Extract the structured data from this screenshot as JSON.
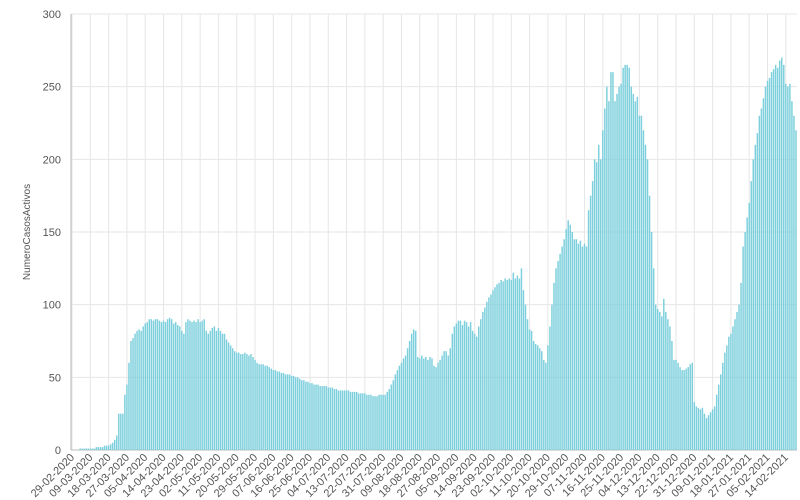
{
  "chart_data": {
    "type": "bar",
    "y_label": "NumeroCasosActivos",
    "color": "#7ccfdc",
    "grid": true,
    "ylim": [
      0,
      300
    ],
    "yticks": [
      0,
      50,
      100,
      150,
      200,
      250,
      300
    ],
    "categories": [
      "29-02-2020",
      null,
      null,
      null,
      null,
      null,
      null,
      null,
      null,
      "09-03-2020",
      null,
      null,
      null,
      null,
      null,
      null,
      null,
      null,
      "18-03-2020",
      null,
      null,
      null,
      null,
      null,
      null,
      null,
      null,
      "27-03-2020",
      null,
      null,
      null,
      null,
      null,
      null,
      null,
      null,
      "05-04-2020",
      null,
      null,
      null,
      null,
      null,
      null,
      null,
      null,
      "14-04-2020",
      null,
      null,
      null,
      null,
      null,
      null,
      null,
      null,
      "23-04-2020",
      null,
      null,
      null,
      null,
      null,
      null,
      null,
      null,
      "02-05-2020",
      null,
      null,
      null,
      null,
      null,
      null,
      null,
      null,
      "11-05-2020",
      null,
      null,
      null,
      null,
      null,
      null,
      null,
      null,
      "20-05-2020",
      null,
      null,
      null,
      null,
      null,
      null,
      null,
      null,
      "29-05-2020",
      null,
      null,
      null,
      null,
      null,
      null,
      null,
      null,
      "07-06-2020",
      null,
      null,
      null,
      null,
      null,
      null,
      null,
      null,
      "16-06-2020",
      null,
      null,
      null,
      null,
      null,
      null,
      null,
      null,
      "25-06-2020",
      null,
      null,
      null,
      null,
      null,
      null,
      null,
      null,
      "04-07-2020",
      null,
      null,
      null,
      null,
      null,
      null,
      null,
      null,
      "13-07-2020",
      null,
      null,
      null,
      null,
      null,
      null,
      null,
      null,
      "22-07-2020",
      null,
      null,
      null,
      null,
      null,
      null,
      null,
      null,
      "31-07-2020",
      null,
      null,
      null,
      null,
      null,
      null,
      null,
      null,
      "09-08-2020",
      null,
      null,
      null,
      null,
      null,
      null,
      null,
      null,
      "18-08-2020",
      null,
      null,
      null,
      null,
      null,
      null,
      null,
      null,
      "27-08-2020",
      null,
      null,
      null,
      null,
      null,
      null,
      null,
      null,
      "05-09-2020",
      null,
      null,
      null,
      null,
      null,
      null,
      null,
      null,
      "14-09-2020",
      null,
      null,
      null,
      null,
      null,
      null,
      null,
      null,
      "23-09-2020",
      null,
      null,
      null,
      null,
      null,
      null,
      null,
      null,
      "02-10-2020",
      null,
      null,
      null,
      null,
      null,
      null,
      null,
      null,
      "11-10-2020",
      null,
      null,
      null,
      null,
      null,
      null,
      null,
      null,
      "20-10-2020",
      null,
      null,
      null,
      null,
      null,
      null,
      null,
      null,
      "29-10-2020",
      null,
      null,
      null,
      null,
      null,
      null,
      null,
      null,
      "07-11-2020",
      null,
      null,
      null,
      null,
      null,
      null,
      null,
      null,
      "16-11-2020",
      null,
      null,
      null,
      null,
      null,
      null,
      null,
      null,
      "25-11-2020",
      null,
      null,
      null,
      null,
      null,
      null,
      null,
      null,
      "04-12-2020",
      null,
      null,
      null,
      null,
      null,
      null,
      null,
      null,
      "13-12-2020",
      null,
      null,
      null,
      null,
      null,
      null,
      null,
      null,
      "22-12-2020",
      null,
      null,
      null,
      null,
      null,
      null,
      null,
      null,
      "31-12-2020",
      null,
      null,
      null,
      null,
      null,
      null,
      null,
      null,
      "09-01-2021",
      null,
      null,
      null,
      null,
      null,
      null,
      null,
      null,
      "18-01-2021",
      null,
      null,
      null,
      null,
      null,
      null,
      null,
      null,
      "27-01-2021",
      null,
      null,
      null,
      null,
      null,
      null,
      null,
      null,
      "05-02-2021",
      null,
      null,
      null,
      null,
      null,
      null,
      null,
      null,
      "14-02-2021",
      null,
      null,
      null,
      null,
      null
    ],
    "values": [
      0,
      0,
      0,
      0,
      1,
      1,
      1,
      1,
      1,
      1,
      1,
      1,
      2,
      2,
      2,
      2,
      3,
      3,
      3,
      4,
      5,
      7,
      10,
      25,
      25,
      25,
      38,
      45,
      60,
      75,
      77,
      80,
      82,
      83,
      82,
      85,
      87,
      88,
      90,
      90,
      89,
      90,
      90,
      89,
      88,
      89,
      88,
      90,
      91,
      90,
      87,
      88,
      86,
      85,
      82,
      80,
      88,
      90,
      89,
      88,
      89,
      88,
      90,
      88,
      89,
      90,
      82,
      80,
      82,
      84,
      85,
      82,
      84,
      82,
      80,
      80,
      76,
      74,
      72,
      70,
      68,
      67,
      67,
      66,
      66,
      67,
      66,
      65,
      66,
      64,
      62,
      60,
      59,
      59,
      59,
      58,
      58,
      57,
      56,
      55,
      55,
      54,
      54,
      53,
      53,
      52,
      52,
      52,
      51,
      51,
      50,
      50,
      49,
      48,
      48,
      47,
      47,
      46,
      46,
      45,
      45,
      45,
      44,
      44,
      44,
      44,
      43,
      43,
      43,
      42,
      42,
      41,
      41,
      41,
      41,
      41,
      41,
      40,
      40,
      40,
      40,
      39,
      39,
      39,
      39,
      38,
      38,
      38,
      37,
      37,
      37,
      38,
      38,
      38,
      38,
      40,
      42,
      45,
      48,
      52,
      55,
      58,
      60,
      63,
      65,
      70,
      75,
      80,
      83,
      82,
      64,
      63,
      65,
      63,
      64,
      62,
      64,
      63,
      58,
      57,
      60,
      62,
      65,
      68,
      68,
      65,
      70,
      80,
      85,
      87,
      89,
      89,
      86,
      89,
      88,
      85,
      88,
      82,
      80,
      78,
      85,
      90,
      95,
      98,
      102,
      105,
      107,
      110,
      112,
      114,
      115,
      117,
      116,
      118,
      117,
      118,
      117,
      122,
      118,
      120,
      118,
      125,
      110,
      100,
      90,
      83,
      82,
      75,
      73,
      72,
      70,
      68,
      62,
      60,
      72,
      85,
      100,
      115,
      125,
      130,
      135,
      140,
      145,
      152,
      158,
      155,
      150,
      145,
      145,
      142,
      144,
      140,
      142,
      140,
      165,
      175,
      185,
      200,
      198,
      210,
      200,
      220,
      235,
      250,
      240,
      260,
      260,
      240,
      245,
      250,
      252,
      263,
      265,
      265,
      263,
      250,
      245,
      240,
      243,
      230,
      230,
      220,
      210,
      200,
      175,
      150,
      125,
      100,
      97,
      95,
      92,
      104,
      95,
      90,
      85,
      75,
      62,
      62,
      60,
      57,
      55,
      55,
      56,
      57,
      59,
      60,
      33,
      30,
      29,
      28,
      29,
      25,
      22,
      24,
      26,
      28,
      30,
      38,
      45,
      52,
      60,
      67,
      72,
      78,
      80,
      85,
      90,
      95,
      100,
      115,
      140,
      150,
      160,
      170,
      185,
      200,
      210,
      218,
      230,
      235,
      242,
      250,
      254,
      256,
      260,
      262,
      265,
      263,
      268,
      270,
      265,
      252,
      250,
      252,
      240,
      230,
      220
    ]
  }
}
